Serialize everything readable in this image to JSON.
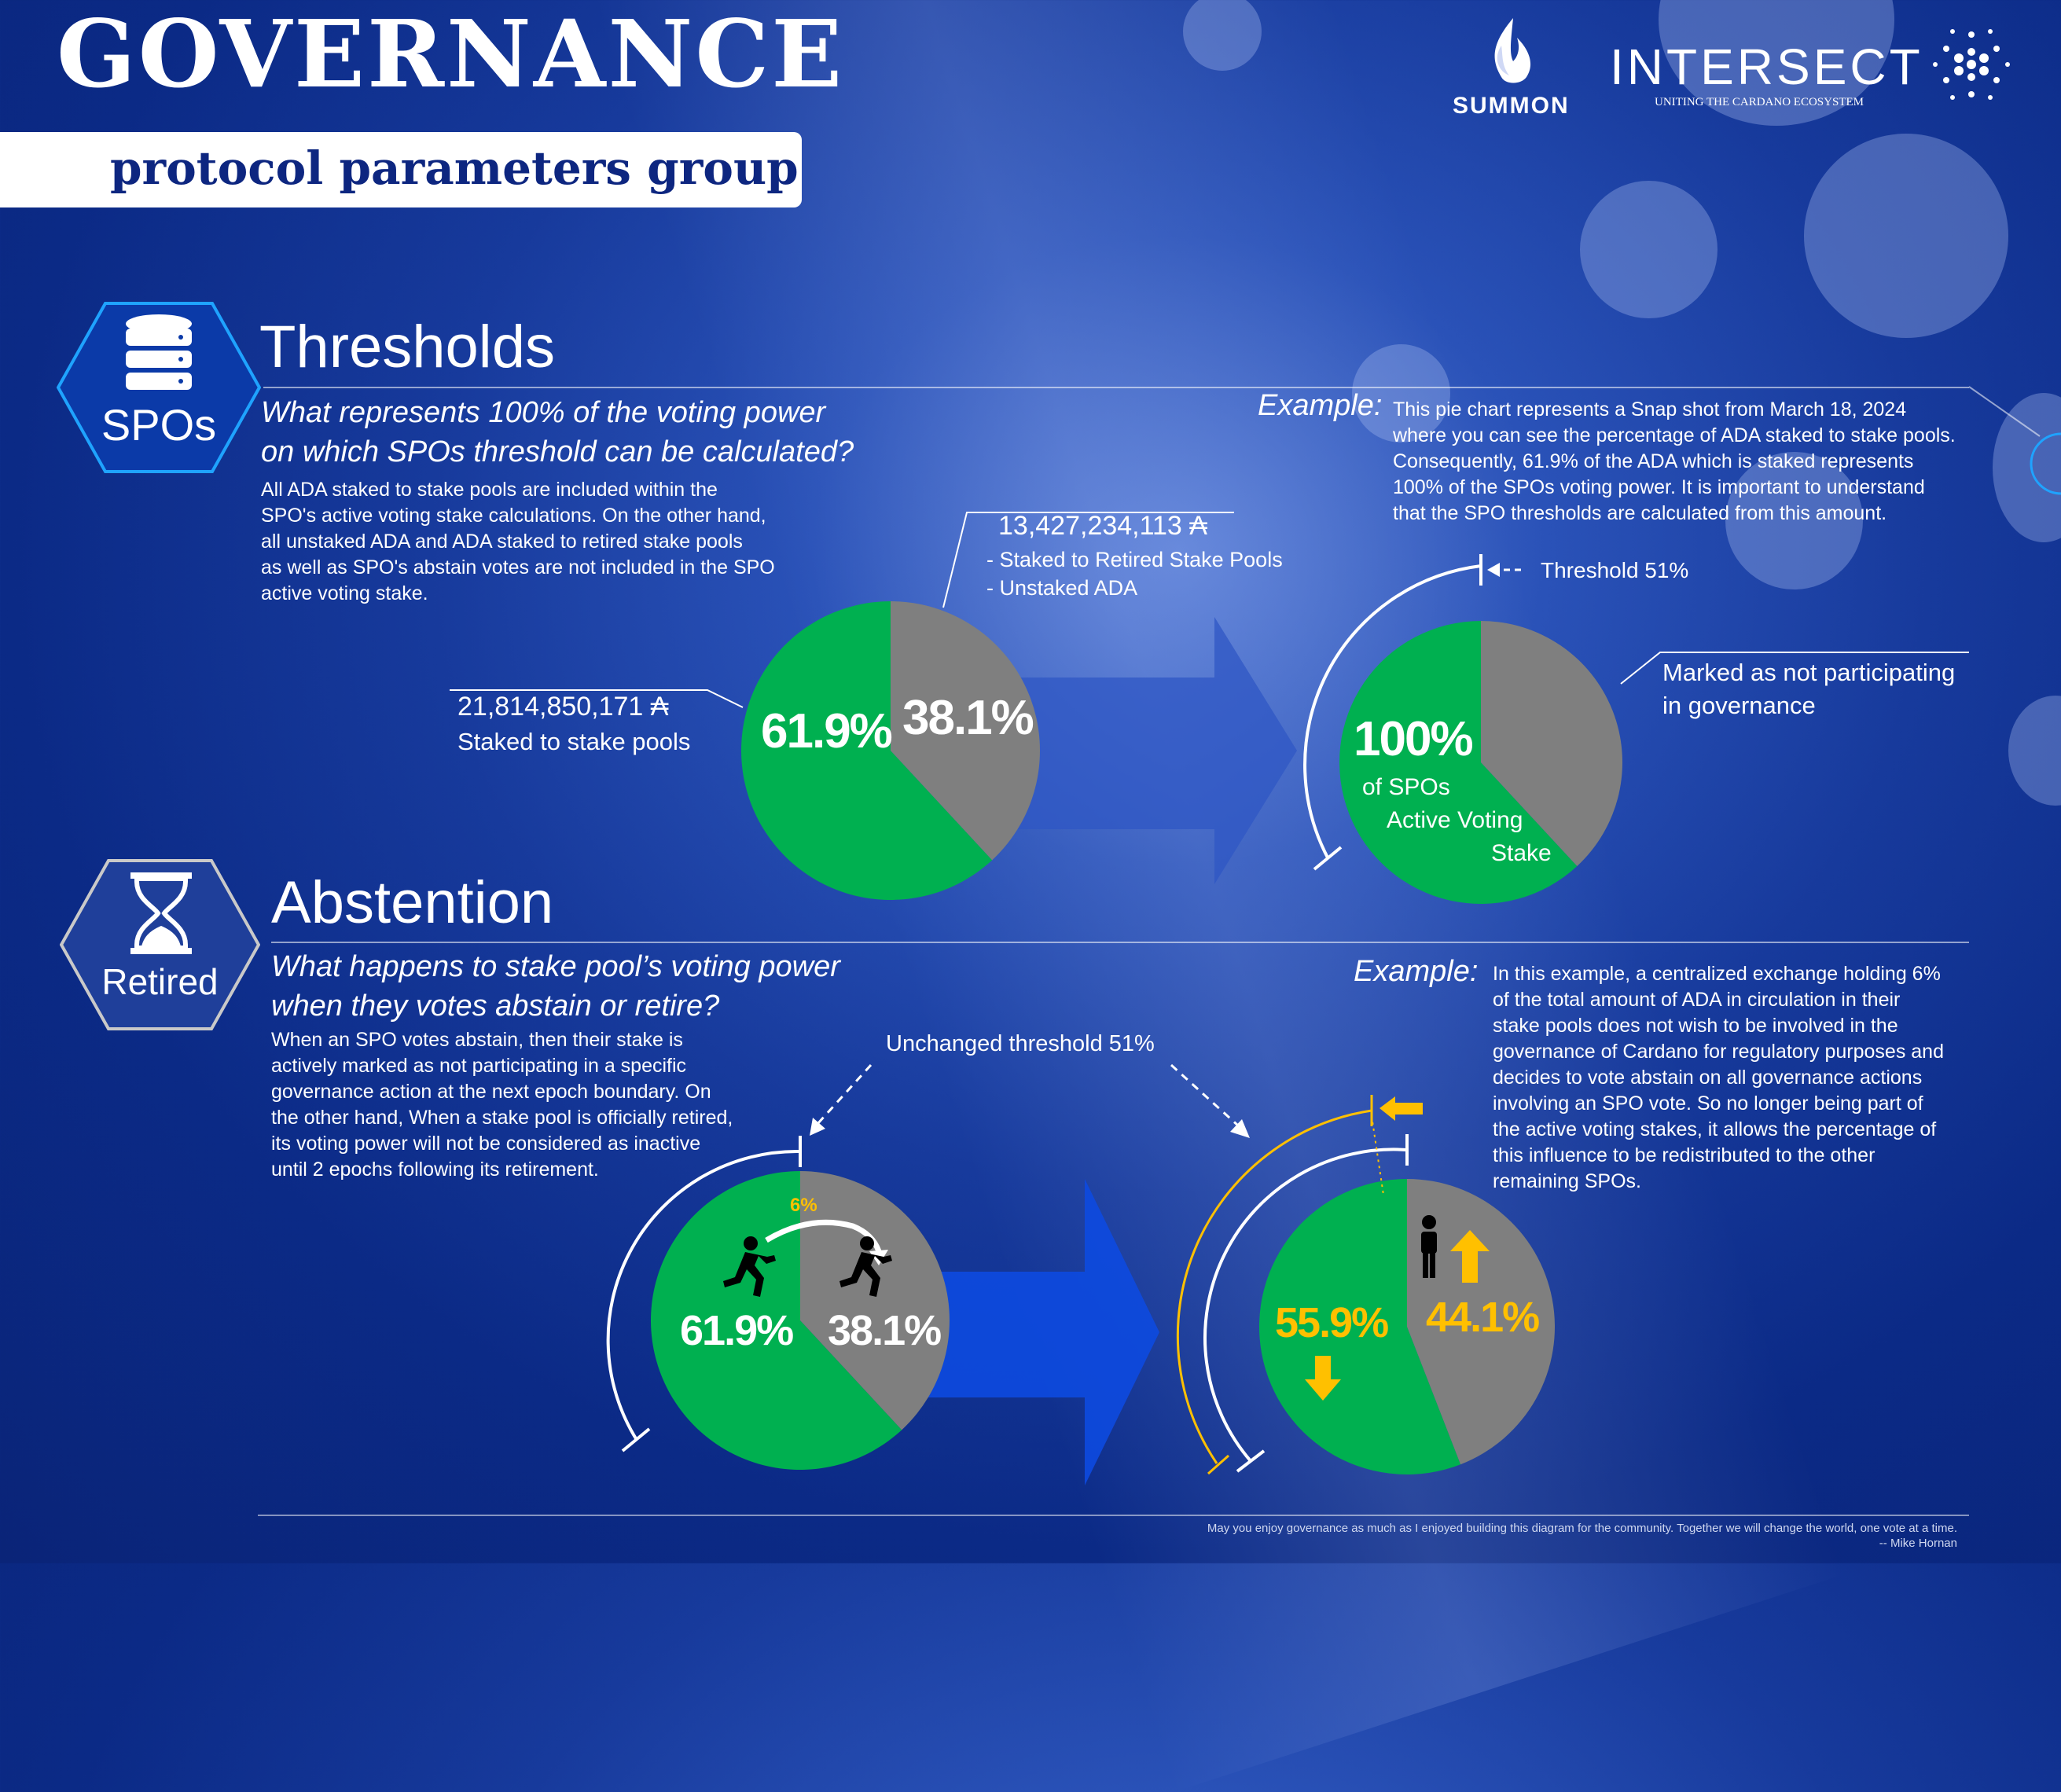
{
  "header": {
    "title": "GOVERNANCE",
    "subtitle": "protocol parameters group",
    "logos": {
      "summon": "SUMMON",
      "intersect": "INTERSECT",
      "intersect_tagline": "UNITING THE CARDANO ECOSYSTEM"
    }
  },
  "thresholds": {
    "badge": "SPOs",
    "title": "Thresholds",
    "question_line1": "What represents 100% of the voting power",
    "question_line2": "on which SPOs threshold can be calculated?",
    "body": [
      "All ADA staked to stake pools are included within the",
      "SPO's active voting stake calculations. On the other hand,",
      "all unstaked ADA and ADA staked to retired stake pools",
      "as well as SPO's abstain votes are not included in the SPO",
      "active voting stake."
    ],
    "staked_amount": "21,814,850,171 ₳",
    "staked_label": "Staked to stake pools",
    "unstaked_amount": "13,427,234,113 ₳",
    "unstaked_label1": "- Staked to Retired Stake Pools",
    "unstaked_label2": "- Unstaked ADA",
    "pie1_green": "61.9%",
    "pie1_gray": "38.1%",
    "example_label": "Example:",
    "example_text": [
      "This pie chart represents a Snap shot from March 18, 2024",
      "where you can see the percentage of ADA staked to stake pools.",
      "Consequently, 61.9% of the ADA which is staked represents",
      "100% of the SPOs voting power. It is important to understand",
      "that the SPO thresholds are calculated from this amount."
    ],
    "threshold_label": "Threshold 51%",
    "pie2_pct": "100%",
    "pie2_l1": "of SPOs",
    "pie2_l2": "Active Voting",
    "pie2_l3": "Stake",
    "not_participating_1": "Marked as not participating",
    "not_participating_2": "in governance"
  },
  "abstention": {
    "badge": "Retired",
    "title": "Abstention",
    "question_line1": "What happens to stake pool’s voting power",
    "question_line2": "when they votes abstain or retire?",
    "body": [
      "When an SPO votes abstain, then their stake is",
      "actively marked as not participating in a specific",
      "governance action at the next epoch boundary. On",
      "the other hand, When a stake pool is officially retired,",
      "its voting power will not be considered as inactive",
      "until 2 epochs following its retirement."
    ],
    "unchanged_label": "Unchanged threshold 51%",
    "six_pct": "6%",
    "pie3_green": "61.9%",
    "pie3_gray": "38.1%",
    "pie4_green": "55.9%",
    "pie4_gray": "44.1%",
    "example_label": "Example:",
    "example_text": [
      "In this example, a centralized exchange holding 6%",
      "of the total amount of ADA in circulation in their",
      "stake pools does not wish to be involved in the",
      "governance of Cardano for regulatory purposes and",
      "decides to vote abstain on all governance actions",
      "involving an SPO vote. So no longer being part of",
      "the active voting stakes, it allows the percentage of",
      "this influence to be redistributed to the other",
      "remaining SPOs."
    ]
  },
  "footer": {
    "quote": "May you enjoy governance as much as I enjoyed building this diagram for the community. Together we will change the world, one vote at a time.",
    "author": "-- Mike Hornan"
  },
  "colors": {
    "green": "#00b050",
    "gray": "#7f7f7f",
    "orange": "#ffc000",
    "background": "#0b2a86"
  },
  "chart_data": [
    {
      "type": "pie",
      "categories": [
        "Staked to stake pools",
        "Staked to Retired Stake Pools / Unstaked ADA"
      ],
      "values": [
        61.9,
        38.1
      ]
    },
    {
      "type": "pie",
      "values": [
        61.9,
        38.1
      ]
    },
    {
      "type": "pie",
      "values": [
        61.9,
        38.1
      ]
    },
    {
      "type": "pie",
      "values": [
        55.9,
        44.1
      ]
    }
  ]
}
